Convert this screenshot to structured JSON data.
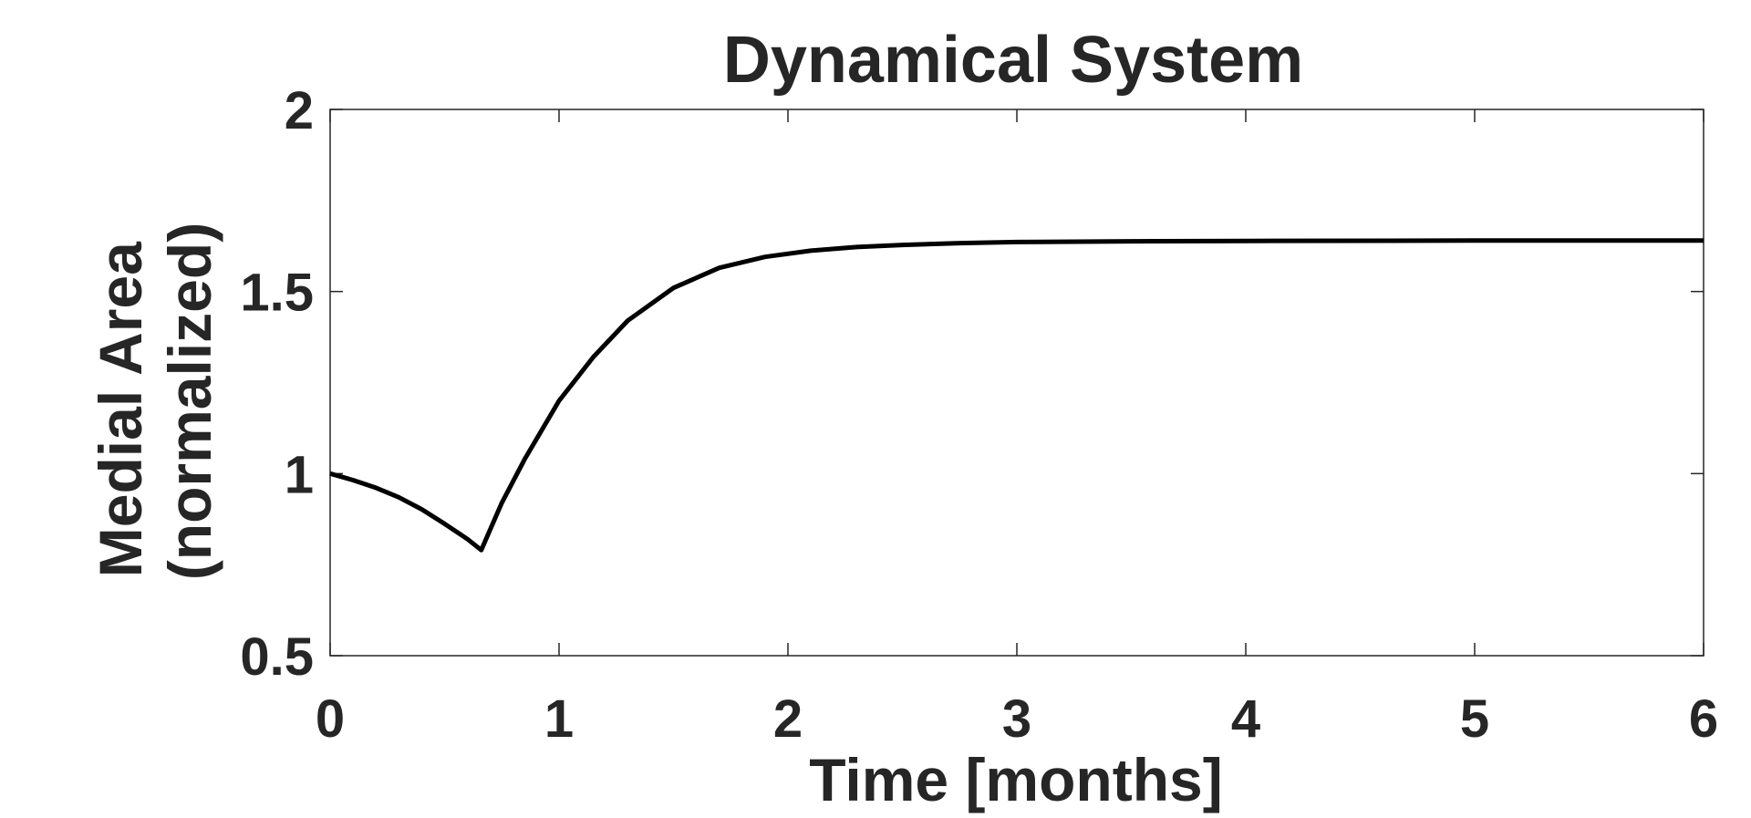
{
  "chart_data": {
    "type": "line",
    "title": "Dynamical System",
    "xlabel": "Time [months]",
    "ylabel_lines": [
      "Medial Area",
      "(normalized)"
    ],
    "xlim": [
      0,
      6
    ],
    "ylim": [
      0.5,
      2
    ],
    "xticks": [
      0,
      1,
      2,
      3,
      4,
      5,
      6
    ],
    "xtick_labels": [
      "0",
      "1",
      "2",
      "3",
      "4",
      "5",
      "6"
    ],
    "yticks": [
      0.5,
      1,
      1.5,
      2
    ],
    "ytick_labels": [
      "0.5",
      "1",
      "1.5",
      "2"
    ],
    "grid": false,
    "line_color": "#000000",
    "axis_color": "#262626",
    "series": [
      {
        "x": [
          0,
          0.1,
          0.2,
          0.3,
          0.4,
          0.5,
          0.6,
          0.66,
          0.75,
          0.85,
          1.0,
          1.15,
          1.3,
          1.5,
          1.7,
          1.9,
          2.1,
          2.3,
          2.5,
          2.75,
          3.0,
          3.5,
          4.0,
          5.0,
          6.0
        ],
        "y": [
          1.0,
          0.982,
          0.961,
          0.935,
          0.902,
          0.862,
          0.82,
          0.79,
          0.92,
          1.04,
          1.2,
          1.32,
          1.42,
          1.51,
          1.565,
          1.595,
          1.612,
          1.622,
          1.628,
          1.633,
          1.636,
          1.638,
          1.639,
          1.64,
          1.64
        ]
      }
    ]
  }
}
